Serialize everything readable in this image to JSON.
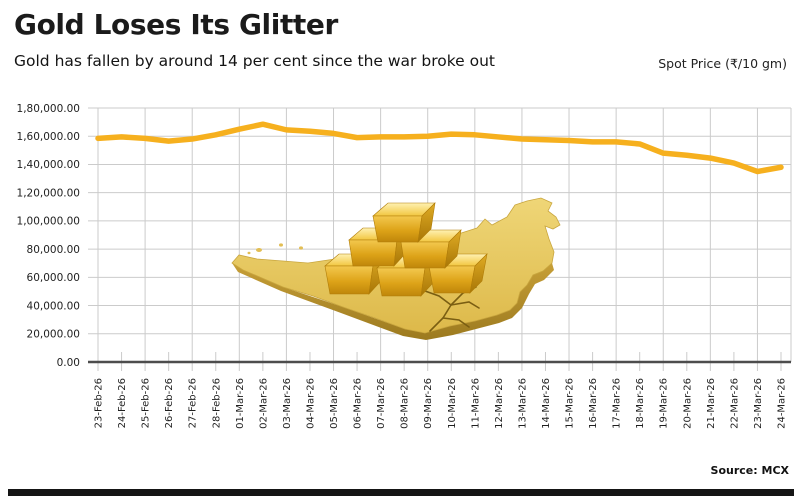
{
  "header": {
    "title": "Gold Loses Its Glitter",
    "subtitle": "Gold has fallen by around 14 per cent since the war broke out",
    "unit_label": "Spot Price (₹/10 gm)"
  },
  "footer": {
    "source": "Source: MCX"
  },
  "colors": {
    "line": "#F6B01E",
    "grid": "#CBCBCB",
    "axis": "#4D4D4D",
    "text": "#1F1F1F",
    "gold_map": "#EACA63",
    "gold_map_side": "#B68F2B",
    "crack": "#7A5E12"
  },
  "chart_data": {
    "type": "line",
    "title": "Gold Loses Its Glitter",
    "subtitle": "Gold has fallen by around 14 per cent since the war broke out",
    "ylabel": "Spot Price (₹/10 gm)",
    "xlabel": "",
    "grid": true,
    "legend_position": "top-right",
    "ylim": [
      0,
      180000
    ],
    "ytick_step": 20000,
    "ytick_labels": [
      "0.00",
      "20,000.00",
      "40,000.00",
      "60,000.00",
      "80,000.00",
      "1,00,000.00",
      "1,20,000.00",
      "1,40,000.00",
      "1,60,000.00",
      "1,80,000.00"
    ],
    "x": [
      "23-Feb-26",
      "24-Feb-26",
      "25-Feb-26",
      "26-Feb-26",
      "27-Feb-26",
      "28-Feb-26",
      "01-Mar-26",
      "02-Mar-26",
      "03-Mar-26",
      "04-Mar-26",
      "05-Mar-26",
      "06-Mar-26",
      "07-Mar-26",
      "08-Mar-26",
      "09-Mar-26",
      "10-Mar-26",
      "11-Mar-26",
      "12-Mar-26",
      "13-Mar-26",
      "14-Mar-26",
      "15-Mar-26",
      "16-Mar-26",
      "17-Mar-26",
      "18-Mar-26",
      "19-Mar-26",
      "20-Mar-26",
      "21-Mar-26",
      "22-Mar-26",
      "23-Mar-26",
      "24-Mar-26"
    ],
    "series": [
      {
        "name": "Spot Price (₹/10 gm)",
        "values": [
          158500,
          159500,
          158500,
          156500,
          158000,
          161000,
          165000,
          168500,
          164500,
          163500,
          162000,
          159000,
          159500,
          159500,
          160000,
          161500,
          161000,
          159500,
          158000,
          157500,
          157000,
          156000,
          156000,
          154500,
          148000,
          146500,
          144500,
          141000,
          135000,
          138000
        ]
      }
    ]
  }
}
